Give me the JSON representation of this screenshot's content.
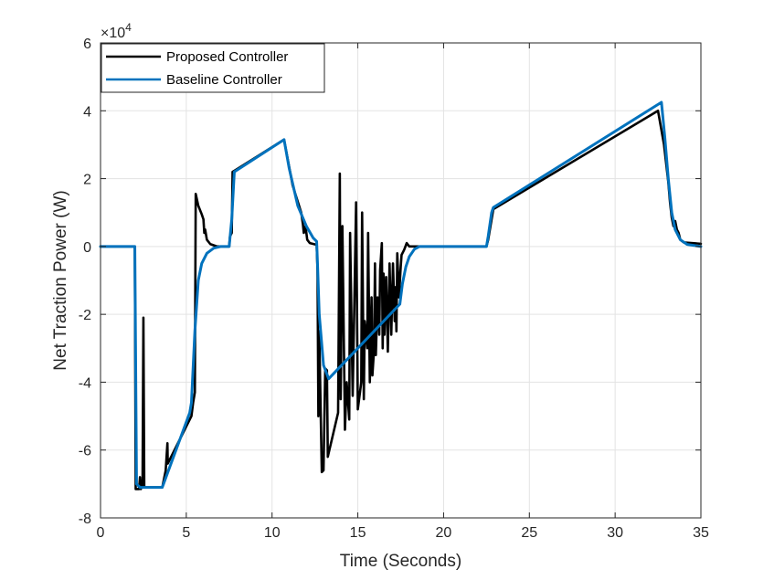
{
  "chart_data": {
    "type": "line",
    "xlabel": "Time (Seconds)",
    "ylabel": "Net Traction Power (W)",
    "xlim": [
      0,
      35
    ],
    "ylim": [
      -80000,
      60000
    ],
    "x_ticks": [
      0,
      5,
      10,
      15,
      20,
      25,
      30,
      35
    ],
    "x_tick_labels": [
      "0",
      "5",
      "10",
      "15",
      "20",
      "25",
      "30",
      "35"
    ],
    "y_ticks": [
      -80000,
      -60000,
      -40000,
      -20000,
      0,
      20000,
      40000,
      60000
    ],
    "y_tick_labels": [
      "-8",
      "-6",
      "-4",
      "-2",
      "0",
      "2",
      "4",
      "6"
    ],
    "y_multiplier": "×10",
    "y_multiplier_exponent": "4",
    "grid": true,
    "legend_position": "top-left",
    "series": [
      {
        "name": "Proposed Controller",
        "color": "#000000",
        "points": [
          [
            0,
            0
          ],
          [
            2.0,
            0
          ],
          [
            2.05,
            -71500
          ],
          [
            2.25,
            -71500
          ],
          [
            2.3,
            -68000
          ],
          [
            2.35,
            -71500
          ],
          [
            2.45,
            -70000
          ],
          [
            2.5,
            -21000
          ],
          [
            2.55,
            -71000
          ],
          [
            3.6,
            -71000
          ],
          [
            3.8,
            -66000
          ],
          [
            3.9,
            -58000
          ],
          [
            3.92,
            -64000
          ],
          [
            5.3,
            -50000
          ],
          [
            5.4,
            -46000
          ],
          [
            5.5,
            -43000
          ],
          [
            5.55,
            15500
          ],
          [
            5.7,
            12000
          ],
          [
            5.9,
            9500
          ],
          [
            6.0,
            8000
          ],
          [
            6.05,
            4000
          ],
          [
            6.1,
            5000
          ],
          [
            6.2,
            2000
          ],
          [
            6.4,
            700
          ],
          [
            6.8,
            0
          ],
          [
            7.5,
            0
          ],
          [
            7.55,
            3000
          ],
          [
            7.65,
            4000
          ],
          [
            7.7,
            22000
          ],
          [
            10.7,
            31500
          ],
          [
            11.2,
            18000
          ],
          [
            11.7,
            10000
          ],
          [
            11.8,
            6500
          ],
          [
            11.85,
            4000
          ],
          [
            11.95,
            6000
          ],
          [
            12.05,
            2000
          ],
          [
            12.2,
            1000
          ],
          [
            12.6,
            500
          ],
          [
            12.65,
            -7000
          ],
          [
            12.7,
            -50000
          ],
          [
            12.75,
            -25000
          ],
          [
            12.9,
            -66500
          ],
          [
            13.0,
            -66000
          ],
          [
            13.1,
            -36000
          ],
          [
            13.2,
            -36500
          ],
          [
            13.25,
            -62000
          ],
          [
            13.85,
            -49000
          ],
          [
            13.95,
            21500
          ],
          [
            14.0,
            -45000
          ],
          [
            14.1,
            6000
          ],
          [
            14.25,
            -54000
          ],
          [
            14.35,
            -40000
          ],
          [
            14.5,
            -51000
          ],
          [
            14.55,
            4000
          ],
          [
            14.7,
            -44000
          ],
          [
            14.8,
            -16000
          ],
          [
            14.9,
            13000
          ],
          [
            15.0,
            -48000
          ],
          [
            15.2,
            -40000
          ],
          [
            15.25,
            10000
          ],
          [
            15.35,
            -45000
          ],
          [
            15.4,
            -22000
          ],
          [
            15.55,
            -30000
          ],
          [
            15.6,
            4000
          ],
          [
            15.7,
            -40000
          ],
          [
            15.8,
            -15000
          ],
          [
            15.85,
            -38000
          ],
          [
            15.95,
            -30000
          ],
          [
            16.0,
            -5000
          ],
          [
            16.05,
            -32000
          ],
          [
            16.15,
            -15000
          ],
          [
            16.25,
            -26000
          ],
          [
            16.3,
            -7000
          ],
          [
            16.4,
            1000
          ],
          [
            16.45,
            -30000
          ],
          [
            16.5,
            -8000
          ],
          [
            16.55,
            -26000
          ],
          [
            16.65,
            -9000
          ],
          [
            16.75,
            -31000
          ],
          [
            16.85,
            -5000
          ],
          [
            16.95,
            -26000
          ],
          [
            17.05,
            -5000
          ],
          [
            17.15,
            -22000
          ],
          [
            17.2,
            -12000
          ],
          [
            17.25,
            -25000
          ],
          [
            17.3,
            -2000
          ],
          [
            17.4,
            -15000
          ],
          [
            17.5,
            -6000
          ],
          [
            17.55,
            -2500
          ],
          [
            17.7,
            -1000
          ],
          [
            17.85,
            1000
          ],
          [
            18.0,
            0
          ],
          [
            22.5,
            0
          ],
          [
            22.6,
            2000
          ],
          [
            22.8,
            8000
          ],
          [
            22.9,
            11000
          ],
          [
            32.5,
            40000
          ],
          [
            32.85,
            30000
          ],
          [
            33.1,
            19000
          ],
          [
            33.2,
            13000
          ],
          [
            33.3,
            8500
          ],
          [
            33.4,
            6000
          ],
          [
            33.5,
            7500
          ],
          [
            33.6,
            5000
          ],
          [
            33.7,
            4000
          ],
          [
            33.8,
            2000
          ],
          [
            34.0,
            1200
          ],
          [
            35.0,
            800
          ]
        ]
      },
      {
        "name": "Baseline Controller",
        "color": "#0072bd",
        "points": [
          [
            0,
            0
          ],
          [
            2.0,
            0
          ],
          [
            2.1,
            -70000
          ],
          [
            2.3,
            -71000
          ],
          [
            2.5,
            -71000
          ],
          [
            3.6,
            -71000
          ],
          [
            5.2,
            -49000
          ],
          [
            5.3,
            -46000
          ],
          [
            5.5,
            -25000
          ],
          [
            5.7,
            -10000
          ],
          [
            5.9,
            -5000
          ],
          [
            6.2,
            -2000
          ],
          [
            6.6,
            -500
          ],
          [
            7.0,
            0
          ],
          [
            7.5,
            0
          ],
          [
            7.65,
            8000
          ],
          [
            7.8,
            22000
          ],
          [
            10.7,
            31500
          ],
          [
            11.0,
            23000
          ],
          [
            11.5,
            12000
          ],
          [
            12.0,
            6000
          ],
          [
            12.4,
            2500
          ],
          [
            12.6,
            1500
          ],
          [
            12.65,
            -5000
          ],
          [
            12.75,
            -20000
          ],
          [
            13.0,
            -35000
          ],
          [
            13.3,
            -39000
          ],
          [
            17.45,
            -17000
          ],
          [
            17.6,
            -11000
          ],
          [
            17.8,
            -6000
          ],
          [
            18.0,
            -3000
          ],
          [
            18.3,
            -800
          ],
          [
            18.6,
            0
          ],
          [
            22.5,
            0
          ],
          [
            22.6,
            3000
          ],
          [
            22.8,
            10000
          ],
          [
            22.9,
            11500
          ],
          [
            32.7,
            42500
          ],
          [
            32.9,
            32000
          ],
          [
            33.1,
            20000
          ],
          [
            33.3,
            10000
          ],
          [
            33.5,
            5000
          ],
          [
            33.8,
            2000
          ],
          [
            34.2,
            600
          ],
          [
            35.0,
            0
          ]
        ]
      }
    ]
  }
}
